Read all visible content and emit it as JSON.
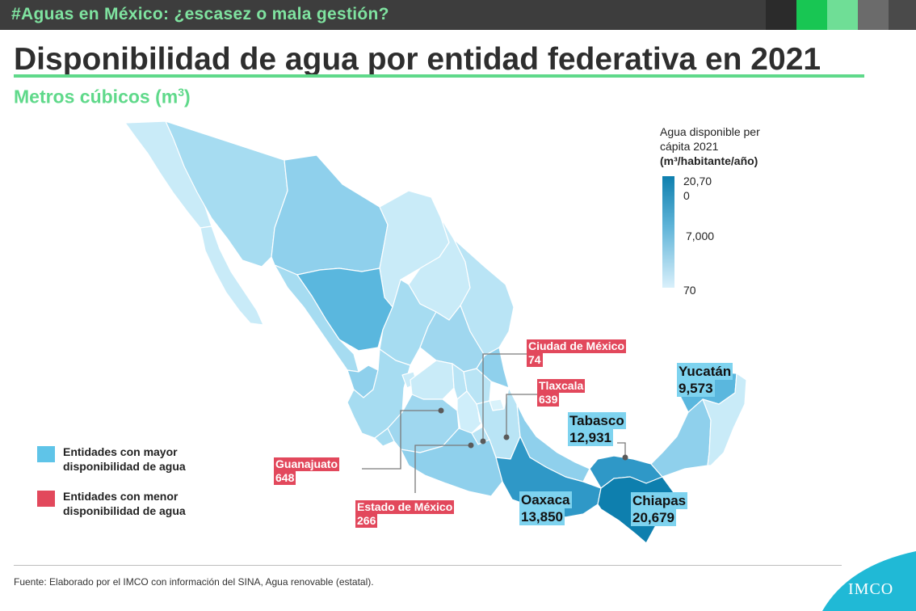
{
  "header": {
    "hashtag": "#Aguas en México: ¿escasez o mala gestión?"
  },
  "title": "Disponibilidad de agua por entidad federativa en 2021",
  "subtitle": {
    "text": "Metros cúbicos (m",
    "sup": "3",
    "close": ")"
  },
  "legend": {
    "title_line1": "Agua disponible per",
    "title_line2": "cápita 2021",
    "title_units": "(m³/habitante/año)",
    "max_label_a": "20,70",
    "max_label_b": "0",
    "mid_label": "7,000",
    "min_label": "70"
  },
  "callouts": {
    "cdmx": {
      "name": "Ciudad de México",
      "value": "74"
    },
    "tlaxcala": {
      "name": "Tlaxcala",
      "value": "639"
    },
    "guanajuato": {
      "name": "Guanajuato",
      "value": "648"
    },
    "edomex": {
      "name": "Estado de México",
      "value": "266"
    },
    "yucatan": {
      "name": "Yucatán",
      "value": "9,573"
    },
    "tabasco": {
      "name": "Tabasco",
      "value": "12,931"
    },
    "oaxaca": {
      "name": "Oaxaca",
      "value": "13,850"
    },
    "chiapas": {
      "name": "Chiapas",
      "value": "20,679"
    }
  },
  "key": {
    "high": {
      "line1": "Entidades con mayor",
      "line2": "disponibilidad de agua",
      "color": "#5fc4e8"
    },
    "low": {
      "line1": "Entidades con menor",
      "line2": "disponibilidad de agua",
      "color": "#e2485c"
    }
  },
  "colors": {
    "accent_green": "#5fd98a",
    "topbar": "#3d3d3d",
    "red": "#e2485c",
    "light_blue": "#7ed3ef"
  },
  "source": "Fuente: Elaborado por el IMCO con información del SINA, Agua renovable (estatal).",
  "brand": "IMCO"
}
